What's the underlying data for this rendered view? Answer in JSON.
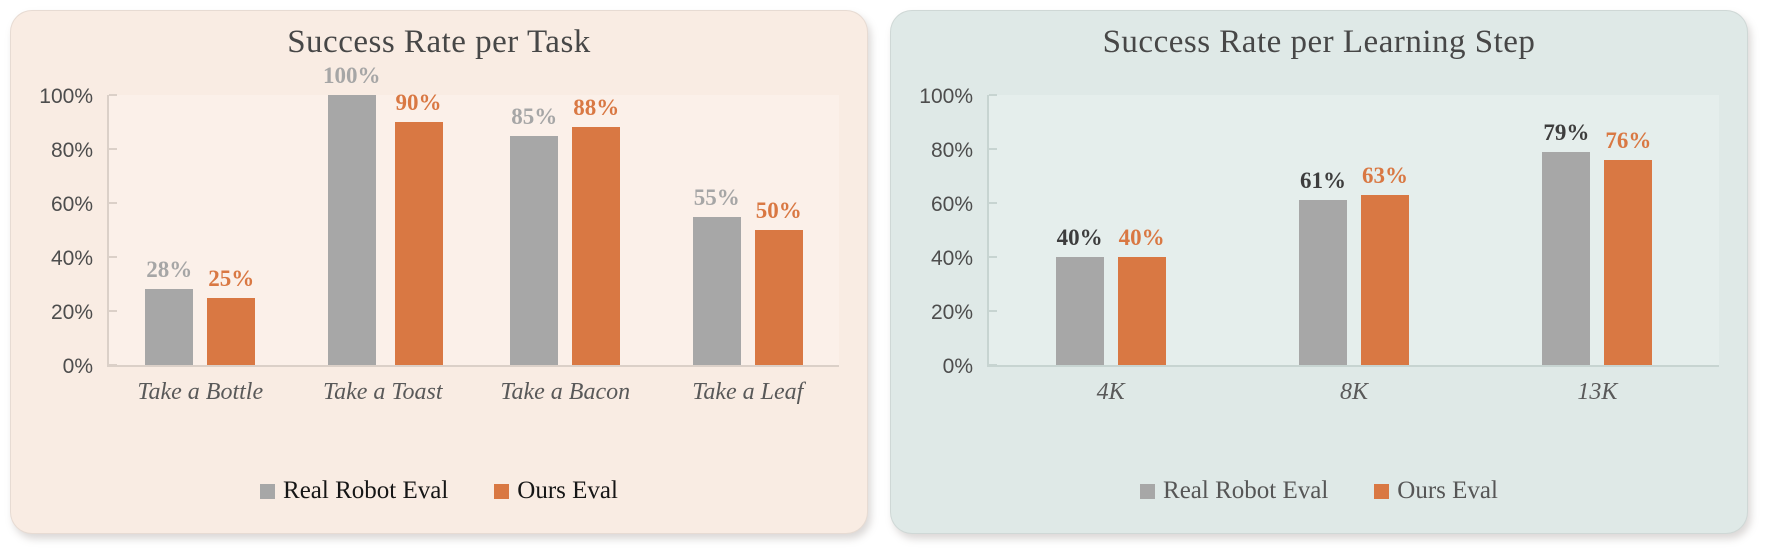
{
  "page": {
    "background": "#ffffff"
  },
  "chart_data": [
    {
      "type": "bar",
      "title": "Success Rate per Task",
      "categories": [
        "Take a Bottle",
        "Take a Toast",
        "Take a Bacon",
        "Take a Leaf"
      ],
      "series": [
        {
          "name": "Real Robot Eval",
          "values": [
            28,
            100,
            85,
            55
          ],
          "color": "#a7a7a7",
          "data_label_color": "#a6a6a6"
        },
        {
          "name": "Ours Eval",
          "values": [
            25,
            90,
            88,
            50
          ],
          "color": "#d97843",
          "data_label_color": "#d97843"
        }
      ],
      "value_suffix": "%",
      "ylim": [
        0,
        100
      ],
      "y_ticks": [
        0,
        20,
        40,
        60,
        80,
        100
      ],
      "y_tick_suffix": "%",
      "xlabel": "",
      "ylabel": "",
      "grid": false,
      "data_labels": true,
      "legend_position": "bottom",
      "panel_background": "#f9ece3",
      "plot_background": "#fbf0e9",
      "axis_color": "#dbd0c8",
      "title_color": "#474747",
      "y_tick_label_color": "#4d4d4d",
      "category_label_color": "#595959",
      "legend_text_color": "#161616"
    },
    {
      "type": "bar",
      "title": "Success Rate per Learning Step",
      "categories": [
        "4K",
        "8K",
        "13K"
      ],
      "series": [
        {
          "name": "Real Robot Eval",
          "values": [
            40,
            61,
            79
          ],
          "color": "#a7a7a7",
          "data_label_color": "#3d3d3d"
        },
        {
          "name": "Ours Eval",
          "values": [
            40,
            63,
            76
          ],
          "color": "#d97843",
          "data_label_color": "#d97843"
        }
      ],
      "value_suffix": "%",
      "ylim": [
        0,
        100
      ],
      "y_ticks": [
        0,
        20,
        40,
        60,
        80,
        100
      ],
      "y_tick_suffix": "%",
      "xlabel": "",
      "ylabel": "",
      "grid": false,
      "data_labels": true,
      "legend_position": "bottom",
      "panel_background": "#dfe9e7",
      "plot_background": "#e5eeec",
      "axis_color": "#c7d4d1",
      "title_color": "#474747",
      "y_tick_label_color": "#4d4d4d",
      "category_label_color": "#595959",
      "legend_text_color": "#565656"
    }
  ]
}
